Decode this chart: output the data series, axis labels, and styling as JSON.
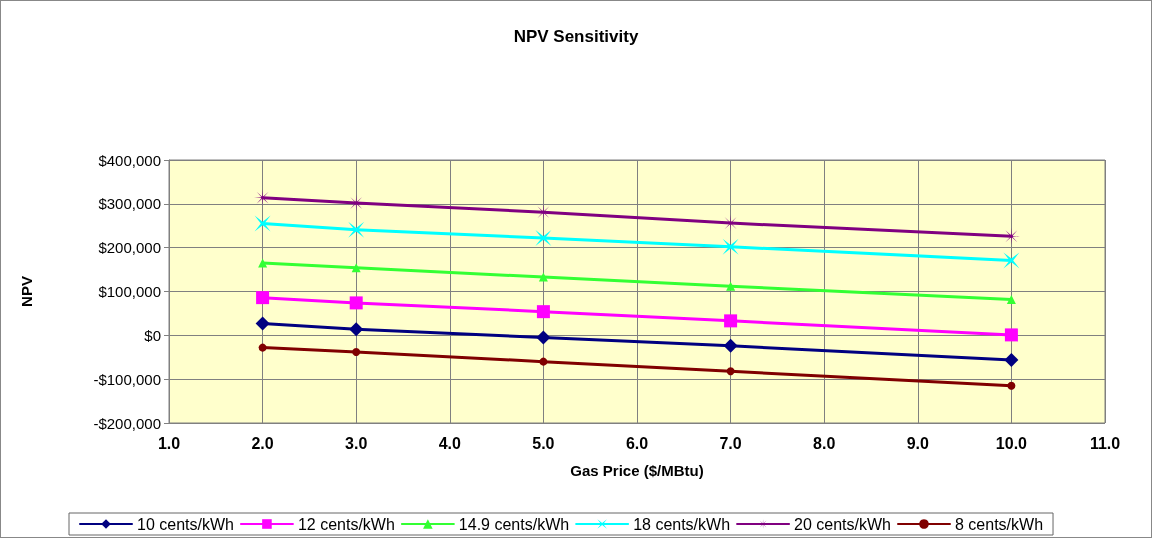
{
  "chart_data": {
    "type": "line",
    "title": "NPV Sensitivity",
    "xlabel": "Gas Price ($/MBtu)",
    "ylabel": "NPV",
    "x": [
      2,
      3,
      5,
      7,
      10
    ],
    "series": [
      {
        "name": "10 cents/kWh",
        "color": "#000080",
        "marker": "diamond",
        "values": [
          27000,
          14000,
          -5000,
          -24000,
          -56000
        ]
      },
      {
        "name": "12 cents/kWh",
        "color": "#ff00ff",
        "marker": "square",
        "values": [
          86000,
          74000,
          54000,
          33000,
          1000
        ]
      },
      {
        "name": "14.9 cents/kWh",
        "color": "#33ff33",
        "marker": "triangle",
        "values": [
          165000,
          154000,
          133000,
          112000,
          82000
        ]
      },
      {
        "name": "18 cents/kWh",
        "color": "#00ffff",
        "marker": "cross",
        "values": [
          255000,
          241000,
          222000,
          202000,
          171000
        ]
      },
      {
        "name": "20 cents/kWh",
        "color": "#800080",
        "marker": "star",
        "values": [
          314000,
          302000,
          281000,
          256000,
          226000
        ]
      },
      {
        "name": "8 cents/kWh",
        "color": "#800000",
        "marker": "circle",
        "values": [
          -28000,
          -38000,
          -60000,
          -82000,
          -115000
        ]
      }
    ],
    "xlim": [
      1,
      11
    ],
    "xticks": [
      {
        "value": 1,
        "label": "1.0"
      },
      {
        "value": 2,
        "label": "2.0"
      },
      {
        "value": 3,
        "label": "3.0"
      },
      {
        "value": 4,
        "label": "4.0"
      },
      {
        "value": 5,
        "label": "5.0"
      },
      {
        "value": 6,
        "label": "6.0"
      },
      {
        "value": 7,
        "label": "7.0"
      },
      {
        "value": 8,
        "label": "8.0"
      },
      {
        "value": 9,
        "label": "9.0"
      },
      {
        "value": 10,
        "label": "10.0"
      },
      {
        "value": 11,
        "label": "11.0"
      }
    ],
    "ylim": [
      -200000,
      400000
    ],
    "yticks": [
      {
        "value": -200000,
        "label": "-$200,000"
      },
      {
        "value": -100000,
        "label": "-$100,000"
      },
      {
        "value": 0,
        "label": "$0"
      },
      {
        "value": 100000,
        "label": "$100,000"
      },
      {
        "value": 200000,
        "label": "$200,000"
      },
      {
        "value": 300000,
        "label": "$300,000"
      },
      {
        "value": 400000,
        "label": "$400,000"
      }
    ],
    "grid": true,
    "legend": "bottom",
    "line_style": "solid"
  }
}
